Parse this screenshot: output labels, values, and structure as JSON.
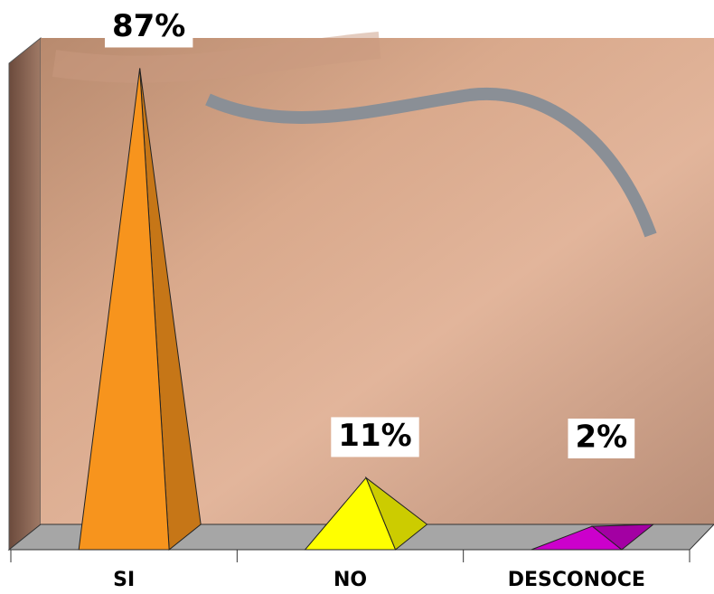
{
  "chart_data": {
    "type": "pyramid3d",
    "categories": [
      "SI",
      "NO",
      "DESCONOCE"
    ],
    "values": [
      87,
      11,
      2
    ],
    "value_labels": [
      "87%",
      "11%",
      "2%"
    ],
    "colors": [
      "#f7941d",
      "#ffff00",
      "#cc00cc"
    ]
  }
}
